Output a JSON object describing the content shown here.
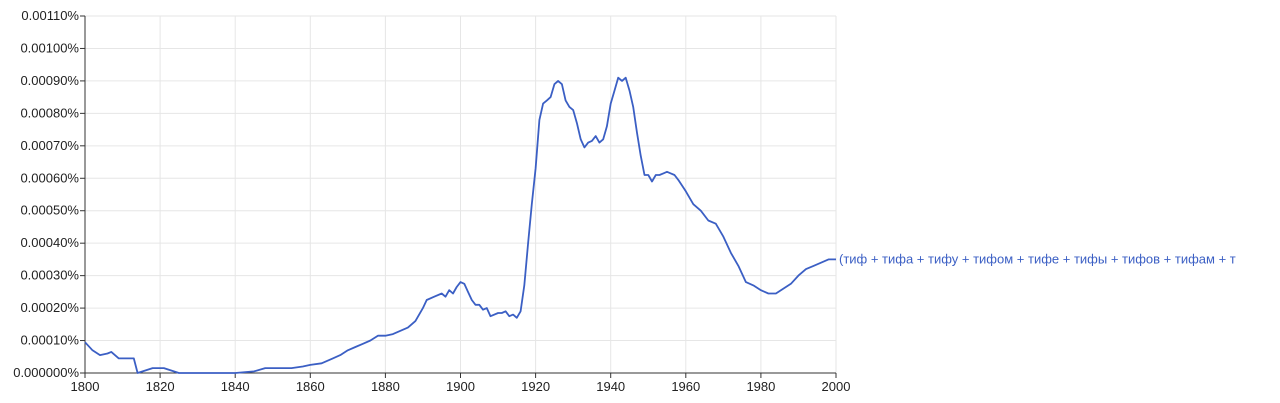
{
  "chart_data": {
    "type": "line",
    "title": "",
    "xlabel": "",
    "ylabel": "",
    "xlim": [
      1800,
      2000
    ],
    "ylim": [
      0,
      0.0011
    ],
    "x_ticks": [
      "1800",
      "1820",
      "1840",
      "1860",
      "1880",
      "1900",
      "1920",
      "1940",
      "1960",
      "1980",
      "2000"
    ],
    "y_ticks": [
      "0.000000%",
      "0.00010%",
      "0.00020%",
      "0.00030%",
      "0.00040%",
      "0.00050%",
      "0.00060%",
      "0.00070%",
      "0.00080%",
      "0.00090%",
      "0.00100%",
      "0.00110%"
    ],
    "grid": true,
    "series": [
      {
        "name": "(тиф + тифа + тифу + тифом + тифе + тифы + тифов + тифам + т",
        "color": "#3b5fc4",
        "x": [
          1800,
          1802,
          1804,
          1806,
          1807,
          1809,
          1811,
          1813,
          1814,
          1818,
          1820,
          1821,
          1825,
          1835,
          1840,
          1845,
          1848,
          1850,
          1852,
          1855,
          1858,
          1860,
          1863,
          1866,
          1868,
          1870,
          1872,
          1874,
          1876,
          1878,
          1880,
          1882,
          1884,
          1886,
          1888,
          1890,
          1891,
          1893,
          1895,
          1896,
          1897,
          1898,
          1899,
          1900,
          1901,
          1902,
          1903,
          1904,
          1905,
          1906,
          1907,
          1908,
          1910,
          1911,
          1912,
          1913,
          1914,
          1915,
          1916,
          1917,
          1918,
          1919,
          1920,
          1921,
          1922,
          1923,
          1924,
          1925,
          1926,
          1927,
          1928,
          1929,
          1930,
          1931,
          1932,
          1933,
          1934,
          1935,
          1936,
          1937,
          1938,
          1939,
          1940,
          1941,
          1942,
          1943,
          1944,
          1945,
          1946,
          1947,
          1948,
          1949,
          1950,
          1951,
          1952,
          1953,
          1954,
          1955,
          1956,
          1957,
          1958,
          1960,
          1962,
          1964,
          1966,
          1968,
          1970,
          1972,
          1974,
          1976,
          1978,
          1980,
          1982,
          1984,
          1986,
          1988,
          1990,
          1992,
          1994,
          1996,
          1998,
          2000
        ],
        "values": [
          9.5e-05,
          7e-05,
          5.5e-05,
          6e-05,
          6.5e-05,
          4.5e-05,
          4.5e-05,
          4.5e-05,
          0.0,
          1.5e-05,
          1.5e-05,
          1.5e-05,
          0.0,
          0.0,
          0.0,
          5e-06,
          1.5e-05,
          1.5e-05,
          1.5e-05,
          1.5e-05,
          2e-05,
          2.5e-05,
          3e-05,
          4.5e-05,
          5.5e-05,
          7e-05,
          8e-05,
          9e-05,
          0.0001,
          0.000115,
          0.000115,
          0.00012,
          0.00013,
          0.00014,
          0.00016,
          0.0002,
          0.000225,
          0.000235,
          0.000245,
          0.000235,
          0.000255,
          0.000245,
          0.000265,
          0.00028,
          0.000275,
          0.00025,
          0.000225,
          0.00021,
          0.00021,
          0.000195,
          0.0002,
          0.000175,
          0.000185,
          0.000185,
          0.00019,
          0.000175,
          0.00018,
          0.00017,
          0.00019,
          0.00027,
          0.0004,
          0.00052,
          0.00063,
          0.00078,
          0.00083,
          0.00084,
          0.00085,
          0.00089,
          0.0009,
          0.00089,
          0.00084,
          0.00082,
          0.00081,
          0.00077,
          0.00072,
          0.000695,
          0.00071,
          0.000715,
          0.00073,
          0.00071,
          0.00072,
          0.00076,
          0.00083,
          0.00087,
          0.00091,
          0.0009,
          0.00091,
          0.00087,
          0.00082,
          0.00074,
          0.00067,
          0.00061,
          0.00061,
          0.00059,
          0.00061,
          0.00061,
          0.000615,
          0.00062,
          0.000615,
          0.00061,
          0.000595,
          0.00056,
          0.00052,
          0.0005,
          0.00047,
          0.00046,
          0.00042,
          0.00037,
          0.00033,
          0.00028,
          0.00027,
          0.000255,
          0.000245,
          0.000245,
          0.00026,
          0.000275,
          0.0003,
          0.00032,
          0.00033,
          0.00034,
          0.00035,
          0.00035
        ]
      }
    ]
  }
}
